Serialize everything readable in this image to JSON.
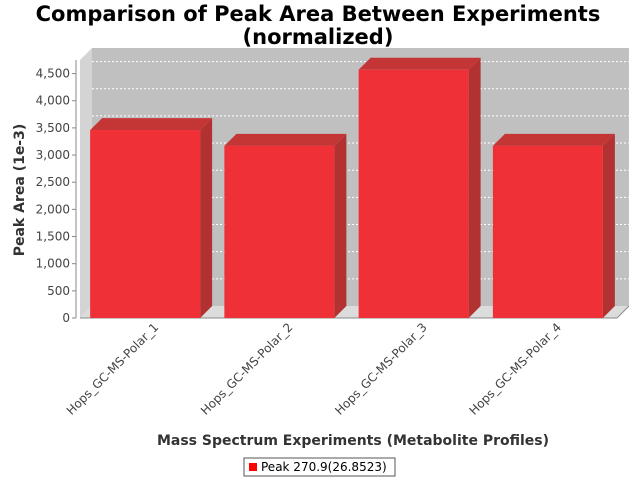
{
  "chart_data": {
    "type": "bar",
    "title_lines": [
      "Comparison of Peak Area Between Experiments",
      "(normalized)"
    ],
    "xlabel": "Mass Spectrum Experiments (Metabolite Profiles)",
    "ylabel": "Peak Area (1e-3)",
    "categories": [
      "Hops_GC-MS-Polar_1",
      "Hops_GC-MS-Polar_2",
      "Hops_GC-MS-Polar_3",
      "Hops_GC-MS-Polar_4"
    ],
    "series": [
      {
        "name": "Peak 270.9(26.8523)",
        "values": [
          3460,
          3170,
          4570,
          3170
        ]
      }
    ],
    "ylim": [
      0,
      4750
    ],
    "yticks": [
      0,
      500,
      1000,
      1500,
      2000,
      2500,
      3000,
      3500,
      4000,
      4500
    ],
    "ytick_labels": [
      "0",
      "500",
      "1,000",
      "1,500",
      "2,000",
      "2,500",
      "3,000",
      "3,500",
      "4,000",
      "4,500"
    ],
    "grid": true,
    "legend_position": "bottom-center",
    "colors": {
      "bar_front": "#ef3036",
      "bar_side": "#b23232",
      "bar_top": "#c43535",
      "plot_background": "#c0c0c0",
      "plot_floor": "#dcdcdc",
      "plot_wall": "#d4d4d4",
      "grid": "#ffffff"
    }
  }
}
